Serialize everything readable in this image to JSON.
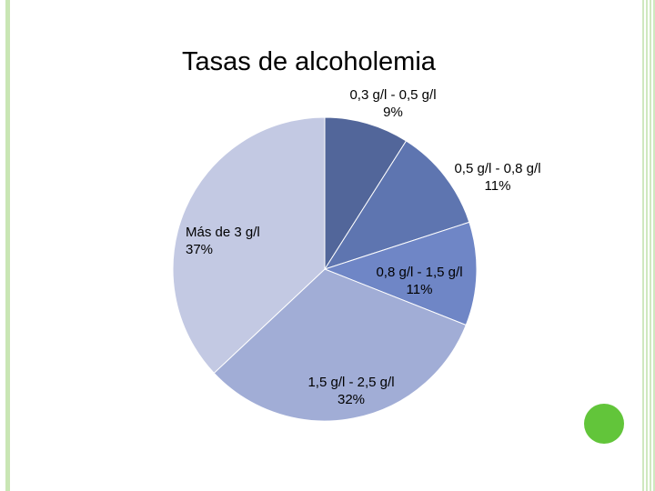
{
  "chart_data": {
    "type": "pie",
    "title": "Tasas de alcoholemia",
    "categories": [
      "0,3 g/l - 0,5 g/l",
      "0,5 g/l - 0,8 g/l",
      "0,8 g/l - 1,5 g/l",
      "1,5 g/l - 2,5 g/l",
      "Más de 3 g/l"
    ],
    "values": [
      9,
      11,
      11,
      32,
      37
    ],
    "value_labels": [
      "9%",
      "11%",
      "11%",
      "32%",
      "37%"
    ],
    "colors": [
      "#52669a",
      "#5e75b0",
      "#6f86c6",
      "#a1add6",
      "#c3c9e3"
    ],
    "legend": "none"
  }
}
